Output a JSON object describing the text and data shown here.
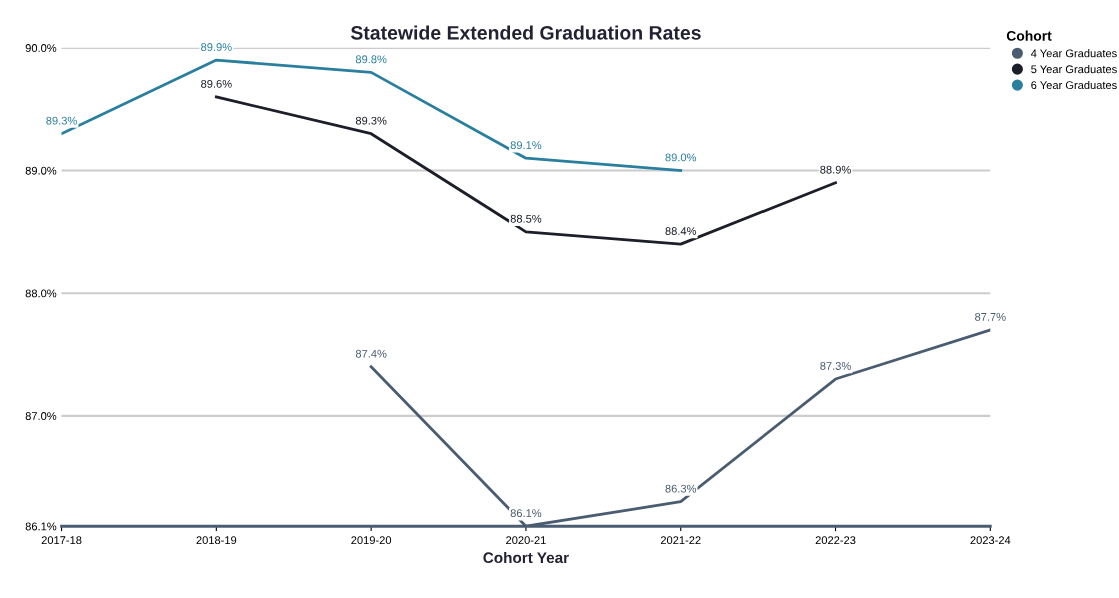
{
  "chart_data": {
    "type": "line",
    "title": "Statewide Extended Graduation Rates",
    "xlabel": "Cohort Year",
    "legend_title": "Cohort",
    "categories": [
      "2017-18",
      "2018-19",
      "2019-20",
      "2020-21",
      "2021-22",
      "2022-23",
      "2023-24"
    ],
    "series": [
      {
        "name": "4 Year Graduates",
        "color": "#4a5d70",
        "values": [
          null,
          null,
          87.4,
          86.1,
          86.3,
          87.3,
          87.7
        ],
        "value_labels": [
          null,
          null,
          "87.4%",
          "86.1%",
          "86.3%",
          "87.3%",
          "87.7%"
        ]
      },
      {
        "name": "5 Year Graduates",
        "color": "#1c1f2a",
        "values": [
          null,
          89.6,
          89.3,
          88.5,
          88.4,
          88.9,
          null
        ],
        "value_labels": [
          null,
          "89.6%",
          "89.3%",
          "88.5%",
          "88.4%",
          "88.9%",
          null
        ]
      },
      {
        "name": "6 Year Graduates",
        "color": "#2a7f9e",
        "values": [
          89.3,
          89.9,
          89.8,
          89.1,
          89.0,
          null,
          null
        ],
        "value_labels": [
          "89.3%",
          "89.9%",
          "89.8%",
          "89.1%",
          "89.0%",
          null,
          null
        ]
      }
    ],
    "ylim": [
      86.1,
      90.0
    ],
    "yticks": [
      {
        "value": 86.1,
        "label": "86.1%"
      },
      {
        "value": 87.0,
        "label": "87.0%"
      },
      {
        "value": 88.0,
        "label": "88.0%"
      },
      {
        "value": 89.0,
        "label": "89.0%"
      },
      {
        "value": 90.0,
        "label": "90.0%"
      }
    ],
    "grid": "y",
    "legend": "top right",
    "marker": "none",
    "line_style": "solid"
  }
}
